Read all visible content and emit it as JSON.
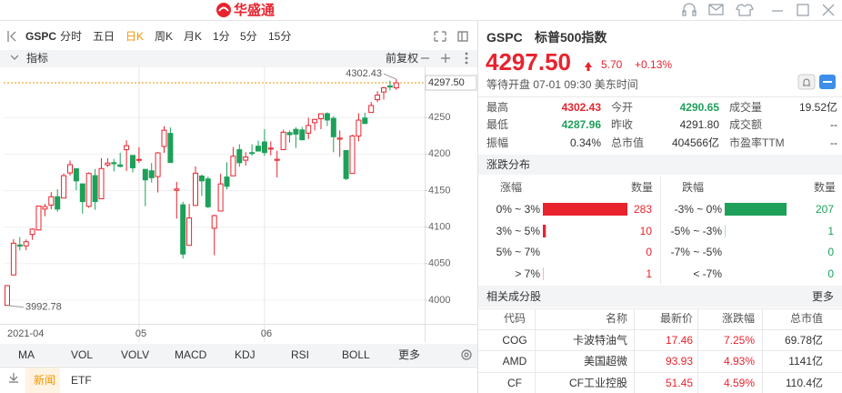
{
  "header": {
    "logo": "华盛通"
  },
  "toolbar": {
    "symbol": "GSPC",
    "periods": [
      "分时",
      "五日",
      "日K",
      "周K",
      "月K",
      "1分",
      "5分",
      "15分"
    ],
    "active": 2
  },
  "indicator_bar": {
    "label": "指标",
    "adjust": "前复权"
  },
  "chart_data": {
    "type": "candlestick",
    "categories": [
      "2021-04",
      null,
      null,
      null,
      null,
      null,
      null,
      null,
      null,
      null,
      null,
      null,
      null,
      null,
      null,
      null,
      null,
      null,
      null,
      null,
      null,
      "05",
      null,
      null,
      null,
      null,
      null,
      null,
      null,
      null,
      null,
      null,
      null,
      null,
      null,
      null,
      null,
      null,
      null,
      null,
      null,
      "06",
      null,
      null,
      null,
      null,
      null,
      null,
      null,
      null,
      null,
      null,
      null,
      null,
      null,
      null,
      null,
      null,
      null,
      null,
      null,
      null,
      null
    ],
    "open": [
      3992.78,
      4034.44,
      4075.57,
      4074.29,
      4089.95,
      4096.11,
      4124.71,
      4130.1,
      4141.58,
      4139.76,
      4174.14,
      4179.8,
      4159.18,
      4128.42,
      4170.46,
      4138.78,
      4185.03,
      4188.25,
      4185.14,
      4206.14,
      4198.1,
      4191.98,
      4179.04,
      4177.06,
      4169.14,
      4210.34,
      4228.29,
      4150.34,
      4130.55,
      4074.99,
      4129.58,
      4169.92,
      4165.94,
      4098.45,
      4121.97,
      4168.61,
      4170.16,
      4205.94,
      4191.59,
      4201.94,
      4210.77,
      4216.52,
      4206.82,
      4191.43,
      4206.05,
      4229.34,
      4233.81,
      4232.99,
      4228.56,
      4242.9,
      4248.31,
      4255.28,
      4248.87,
      4220.37,
      4204.78,
      4173.4,
      4224.61,
      4249.27,
      4256.97,
      4274.45,
      4284.9,
      4293.21,
      4290.65
    ],
    "high": [
      4020.63,
      4083.42,
      4086.23,
      4083.13,
      4098.19,
      4129.48,
      4131.76,
      4148.0,
      4151.69,
      4173.49,
      4191.31,
      4180.81,
      4159.18,
      4175.02,
      4179.57,
      4194.17,
      4194.19,
      4193.35,
      4201.53,
      4218.78,
      4198.1,
      4209.39,
      4179.04,
      4187.72,
      4202.7,
      4238.04,
      4236.39,
      4162.04,
      4134.73,
      4131.58,
      4183.13,
      4171.92,
      4169.15,
      4116.93,
      4172.8,
      4188.72,
      4209.52,
      4213.42,
      4202.61,
      4213.38,
      4218.36,
      4234.12,
      4217.37,
      4204.39,
      4233.45,
      4232.34,
      4236.74,
      4237.09,
      4249.74,
      4248.38,
      4255.59,
      4257.16,
      4251.89,
      4232.29,
      4204.78,
      4226.24,
      4255.84,
      4256.6,
      4271.28,
      4286.12,
      4292.14,
      4300.52,
      4302.43
    ],
    "low": [
      3992.78,
      4034.44,
      4068.14,
      4068.31,
      4082.54,
      4095.51,
      4114.82,
      4124.43,
      4120.87,
      4139.76,
      4170.75,
      4150.47,
      4118.38,
      4126.35,
      4123.69,
      4138.78,
      4182.36,
      4176.22,
      4181.78,
      4176.81,
      4174.85,
      4188.03,
      4128.59,
      4160.94,
      4147.33,
      4201.64,
      4188.13,
      4111.53,
      4056.88,
      4074.99,
      4129.58,
      4142.69,
      4125.99,
      4061.41,
      4121.97,
      4151.72,
      4170.16,
      4182.52,
      4184.11,
      4197.78,
      4203.57,
      4197.59,
      4198.27,
      4167.93,
      4206.05,
      4215.66,
      4208.41,
      4218.74,
      4220.34,
      4232.25,
      4234.07,
      4238.35,
      4202.45,
      4196.05,
      4164.4,
      4173.4,
      4217.27,
      4241.43,
      4256.97,
      4271.16,
      4274.67,
      4287.04,
      4287.96
    ],
    "close": [
      4019.87,
      4077.91,
      4073.94,
      4079.95,
      4097.17,
      4128.8,
      4127.99,
      4141.59,
      4124.66,
      4170.42,
      4185.47,
      4163.26,
      4134.94,
      4173.42,
      4134.98,
      4180.17,
      4187.62,
      4186.72,
      4183.18,
      4211.47,
      4181.17,
      4192.66,
      4164.66,
      4167.59,
      4201.62,
      4232.6,
      4188.43,
      4152.1,
      4063.04,
      4112.5,
      4173.85,
      4163.29,
      4127.83,
      4115.68,
      4159.12,
      4155.86,
      4197.05,
      4188.13,
      4195.99,
      4200.88,
      4204.11,
      4202.04,
      4208.12,
      4192.85,
      4229.89,
      4226.52,
      4227.26,
      4219.55,
      4239.18,
      4247.44,
      4255.15,
      4246.59,
      4223.7,
      4221.86,
      4166.45,
      4224.79,
      4246.44,
      4241.84,
      4266.49,
      4280.7,
      4290.61,
      4291.8,
      4297.5
    ],
    "ylim": [
      3968.75,
      4317.5
    ],
    "yticks": [
      4000,
      4050,
      4100,
      4150,
      4200,
      4250
    ],
    "last_price": {
      "value": 4297.5,
      "label": "4297.50"
    },
    "annotations": [
      {
        "value": 4302.43,
        "label": "4302.43"
      },
      {
        "value": 3992.78,
        "label": "3992.78"
      }
    ],
    "up_color": "#e8232e",
    "down_color": "#1ea05a",
    "last_color": "#f29500",
    "grid": true
  },
  "indicator_tabs": [
    "MA",
    "VOL",
    "VOLV",
    "MACD",
    "KDJ",
    "RSI",
    "BOLL",
    "更多"
  ],
  "news_tabs": [
    "新闻",
    "ETF"
  ],
  "quote": {
    "symbol": "GSPC",
    "name": "标普500指数",
    "price": "4297.50",
    "change": "5.70",
    "change_pct": "+0.13%",
    "status": "等待开盘 07-01 09:30 美东时间"
  },
  "stats": [
    [
      {
        "label": "最高",
        "value": "4302.43",
        "tone": "up"
      },
      {
        "label": "今开",
        "value": "4290.65",
        "tone": "down"
      },
      {
        "label": "成交量",
        "value": "19.52亿",
        "tone": "flat"
      }
    ],
    [
      {
        "label": "最低",
        "value": "4287.96",
        "tone": "down"
      },
      {
        "label": "昨收",
        "value": "4291.80",
        "tone": "flat"
      },
      {
        "label": "成交额",
        "value": "--",
        "tone": "flat"
      }
    ],
    [
      {
        "label": "振幅",
        "value": "0.34%",
        "tone": "flat"
      },
      {
        "label": "总市值",
        "value": "404566亿",
        "tone": "flat"
      },
      {
        "label": "市盈率TTM",
        "value": "--",
        "tone": "flat"
      }
    ]
  ],
  "distribution": {
    "title": "涨跌分布",
    "up_header": [
      "涨幅",
      "数量"
    ],
    "down_header": [
      "跌幅",
      "数量"
    ],
    "up": [
      {
        "range": "0% ~ 3%",
        "count": 283
      },
      {
        "range": "3% ~ 5%",
        "count": 10
      },
      {
        "range": "5% ~ 7%",
        "count": 0
      },
      {
        "range": "> 7%",
        "count": 1
      }
    ],
    "down": [
      {
        "range": "-3% ~ 0%",
        "count": 207
      },
      {
        "range": "-5% ~ -3%",
        "count": 1
      },
      {
        "range": "-7% ~ -5%",
        "count": 0
      },
      {
        "range": "< -7%",
        "count": 0
      }
    ]
  },
  "related": {
    "title": "相关成分股",
    "more": "更多",
    "columns": [
      "代码",
      "名称",
      "最新价",
      "涨跌幅",
      "总市值"
    ],
    "rows": [
      [
        "COG",
        "卡波特油气",
        "17.46",
        "7.25%",
        "69.78亿"
      ],
      [
        "AMD",
        "美国超微",
        "93.93",
        "4.93%",
        "1141亿"
      ],
      [
        "CF",
        "CF工业控股",
        "51.45",
        "4.59%",
        "110.4亿"
      ]
    ]
  }
}
